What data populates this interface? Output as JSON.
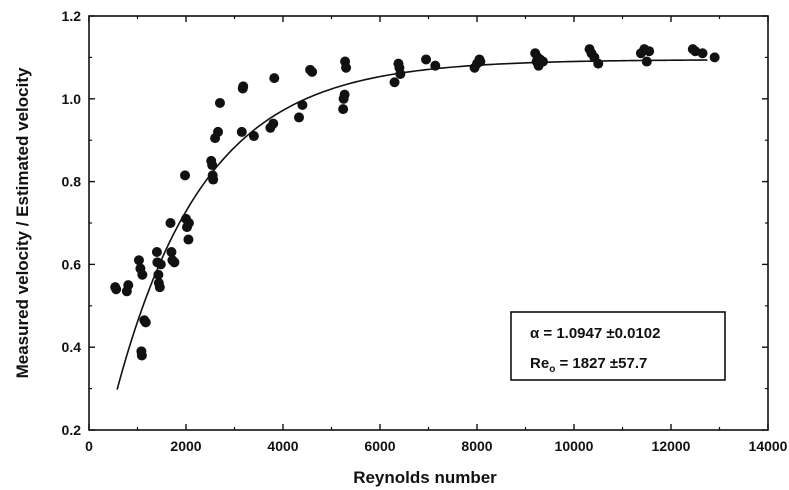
{
  "chart_data": {
    "type": "scatter",
    "xlabel": "Reynolds number",
    "ylabel": "Measured velocity / Estimated velocity",
    "xlim": [
      0,
      14000
    ],
    "ylim": [
      0.2,
      1.2
    ],
    "x_ticks": [
      "0",
      "2000",
      "4000",
      "6000",
      "8000",
      "10000",
      "12000",
      "14000"
    ],
    "y_ticks": [
      "0.2",
      "0.4",
      "0.6",
      "0.8",
      "1.0",
      "1.2"
    ],
    "grid": false,
    "legend_placement": "bottom-right",
    "annotation": {
      "line1": "α = 1.0947 ±0.0102",
      "line2_prefix": "Re",
      "line2_sub": "o",
      "line2_suffix": " = 1827 ±57.7"
    },
    "fit": {
      "alpha": 1.0947,
      "Re0": 1827,
      "x_start": 580,
      "x_end": 12750
    },
    "points": [
      [
        540,
        0.545
      ],
      [
        560,
        0.54
      ],
      [
        780,
        0.535
      ],
      [
        810,
        0.55
      ],
      [
        1030,
        0.61
      ],
      [
        1060,
        0.59
      ],
      [
        1100,
        0.575
      ],
      [
        1080,
        0.39
      ],
      [
        1090,
        0.38
      ],
      [
        1140,
        0.465
      ],
      [
        1170,
        0.46
      ],
      [
        1400,
        0.63
      ],
      [
        1410,
        0.605
      ],
      [
        1430,
        0.575
      ],
      [
        1440,
        0.555
      ],
      [
        1460,
        0.545
      ],
      [
        1480,
        0.6
      ],
      [
        1680,
        0.7
      ],
      [
        1700,
        0.63
      ],
      [
        1720,
        0.61
      ],
      [
        1760,
        0.605
      ],
      [
        1980,
        0.815
      ],
      [
        2000,
        0.71
      ],
      [
        2020,
        0.69
      ],
      [
        2050,
        0.66
      ],
      [
        2060,
        0.7
      ],
      [
        2520,
        0.85
      ],
      [
        2540,
        0.84
      ],
      [
        2550,
        0.815
      ],
      [
        2560,
        0.805
      ],
      [
        2600,
        0.905
      ],
      [
        2660,
        0.92
      ],
      [
        2700,
        0.99
      ],
      [
        3150,
        0.92
      ],
      [
        3170,
        1.025
      ],
      [
        3180,
        1.03
      ],
      [
        3400,
        0.91
      ],
      [
        3740,
        0.93
      ],
      [
        3800,
        0.94
      ],
      [
        3820,
        1.05
      ],
      [
        4330,
        0.955
      ],
      [
        4400,
        0.985
      ],
      [
        4560,
        1.07
      ],
      [
        4600,
        1.065
      ],
      [
        5240,
        0.975
      ],
      [
        5250,
        1.0
      ],
      [
        5270,
        1.01
      ],
      [
        5280,
        1.09
      ],
      [
        5300,
        1.075
      ],
      [
        6300,
        1.04
      ],
      [
        6380,
        1.085
      ],
      [
        6400,
        1.075
      ],
      [
        6420,
        1.06
      ],
      [
        6950,
        1.095
      ],
      [
        7140,
        1.08
      ],
      [
        7950,
        1.075
      ],
      [
        8000,
        1.085
      ],
      [
        8050,
        1.095
      ],
      [
        8070,
        1.09
      ],
      [
        9200,
        1.11
      ],
      [
        9230,
        1.09
      ],
      [
        9250,
        1.1
      ],
      [
        9270,
        1.08
      ],
      [
        9300,
        1.095
      ],
      [
        9360,
        1.09
      ],
      [
        10320,
        1.12
      ],
      [
        10360,
        1.11
      ],
      [
        10420,
        1.1
      ],
      [
        10500,
        1.085
      ],
      [
        11380,
        1.11
      ],
      [
        11450,
        1.12
      ],
      [
        11500,
        1.09
      ],
      [
        11550,
        1.115
      ],
      [
        12450,
        1.12
      ],
      [
        12500,
        1.115
      ],
      [
        12650,
        1.11
      ],
      [
        12900,
        1.1
      ]
    ]
  }
}
